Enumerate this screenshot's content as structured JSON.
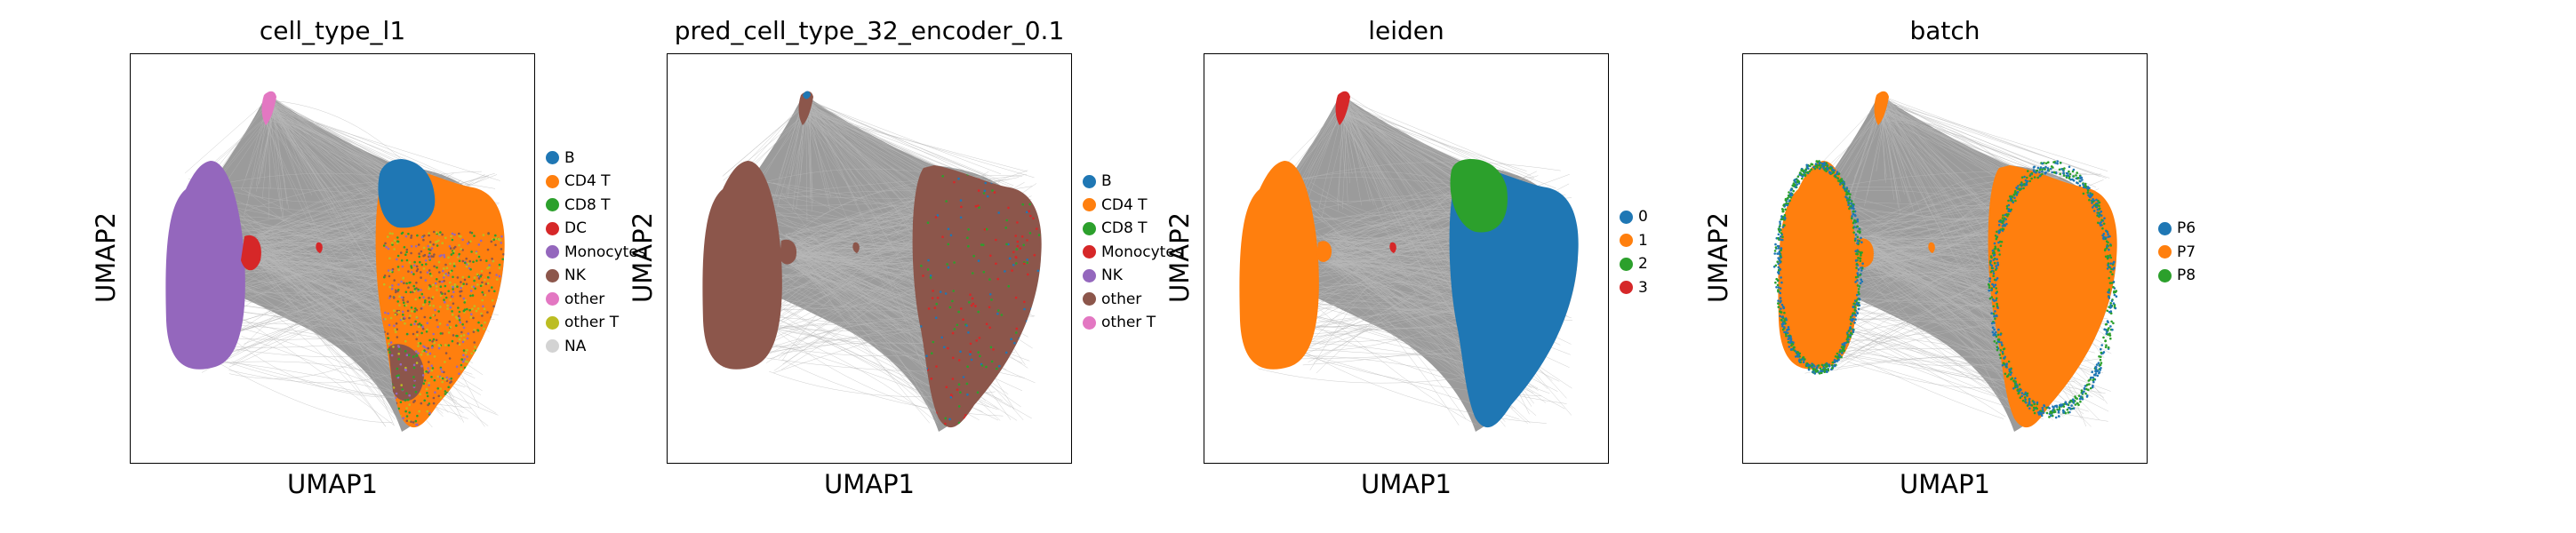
{
  "chart_data": [
    {
      "type": "scatter",
      "title": "cell_type_l1",
      "xlabel": "UMAP1",
      "ylabel": "UMAP2",
      "legend_position": "right",
      "categories": [
        "B",
        "CD4 T",
        "CD8 T",
        "DC",
        "Monocytes",
        "NK",
        "other",
        "other T",
        "NA"
      ],
      "colors": [
        "#1f77b4",
        "#ff7f0e",
        "#2ca02c",
        "#d62728",
        "#9467bd",
        "#8c564b",
        "#e377c2",
        "#bcbd22",
        "#d3d3d3"
      ]
    },
    {
      "type": "scatter",
      "title": "pred_cell_type_32_encoder_0.1",
      "xlabel": "UMAP1",
      "ylabel": "UMAP2",
      "legend_position": "right",
      "categories": [
        "B",
        "CD4 T",
        "CD8 T",
        "Monocytes",
        "NK",
        "other",
        "other T"
      ],
      "colors": [
        "#1f77b4",
        "#ff7f0e",
        "#2ca02c",
        "#d62728",
        "#9467bd",
        "#8c564b",
        "#e377c2"
      ]
    },
    {
      "type": "scatter",
      "title": "leiden",
      "xlabel": "UMAP1",
      "ylabel": "UMAP2",
      "legend_position": "right",
      "categories": [
        "0",
        "1",
        "2",
        "3"
      ],
      "colors": [
        "#1f77b4",
        "#ff7f0e",
        "#2ca02c",
        "#d62728"
      ]
    },
    {
      "type": "scatter",
      "title": "batch",
      "xlabel": "UMAP1",
      "ylabel": "UMAP2",
      "legend_position": "right",
      "categories": [
        "P6",
        "P7",
        "P8"
      ],
      "colors": [
        "#1f77b4",
        "#ff7f0e",
        "#2ca02c"
      ]
    }
  ]
}
